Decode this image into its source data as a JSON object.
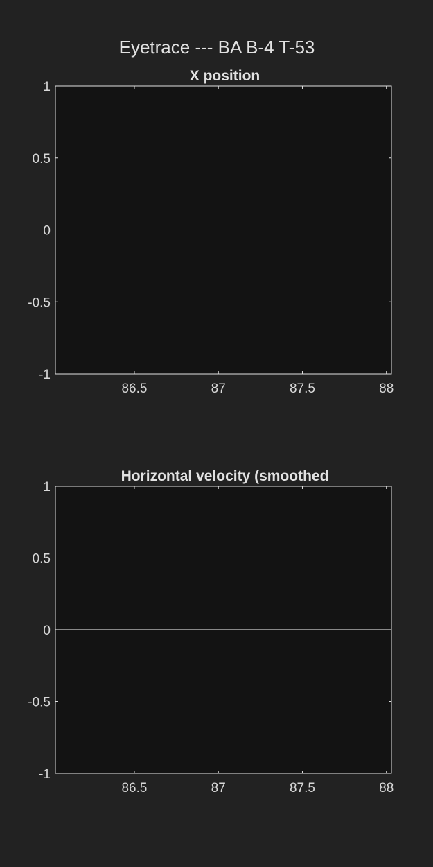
{
  "figure": {
    "title": "Eyetrace --- BA B-4 T-53",
    "background": "#222222",
    "axes_background": "#131313",
    "line_color": "#ffffff"
  },
  "chart_data": [
    {
      "type": "line",
      "title": "X position",
      "xlabel": "",
      "ylabel": "",
      "xlim": [
        86.03,
        88.03
      ],
      "ylim": [
        -1,
        1
      ],
      "xticks": [
        86.5,
        87,
        87.5,
        88
      ],
      "xtick_labels": [
        "86.5",
        "87",
        "87.5",
        "88"
      ],
      "yticks": [
        1,
        0.5,
        0,
        -0.5,
        -1
      ],
      "ytick_labels": [
        "1",
        "0.5",
        "0",
        "-0.5",
        "-1"
      ],
      "grid": false,
      "series": [
        {
          "x": [
            86.03,
            88.03
          ],
          "y": [
            0,
            0
          ]
        }
      ]
    },
    {
      "type": "line",
      "title": "Horizontal velocity (smoothed",
      "xlabel": "",
      "ylabel": "",
      "xlim": [
        86.03,
        88.03
      ],
      "ylim": [
        -1,
        1
      ],
      "xticks": [
        86.5,
        87,
        87.5,
        88
      ],
      "xtick_labels": [
        "86.5",
        "87",
        "87.5",
        "88"
      ],
      "yticks": [
        1,
        0.5,
        0,
        -0.5,
        -1
      ],
      "ytick_labels": [
        "1",
        "0.5",
        "0",
        "-0.5",
        "-1"
      ],
      "grid": false,
      "series": [
        {
          "x": [
            86.03,
            88.03
          ],
          "y": [
            0,
            0
          ]
        }
      ]
    }
  ]
}
